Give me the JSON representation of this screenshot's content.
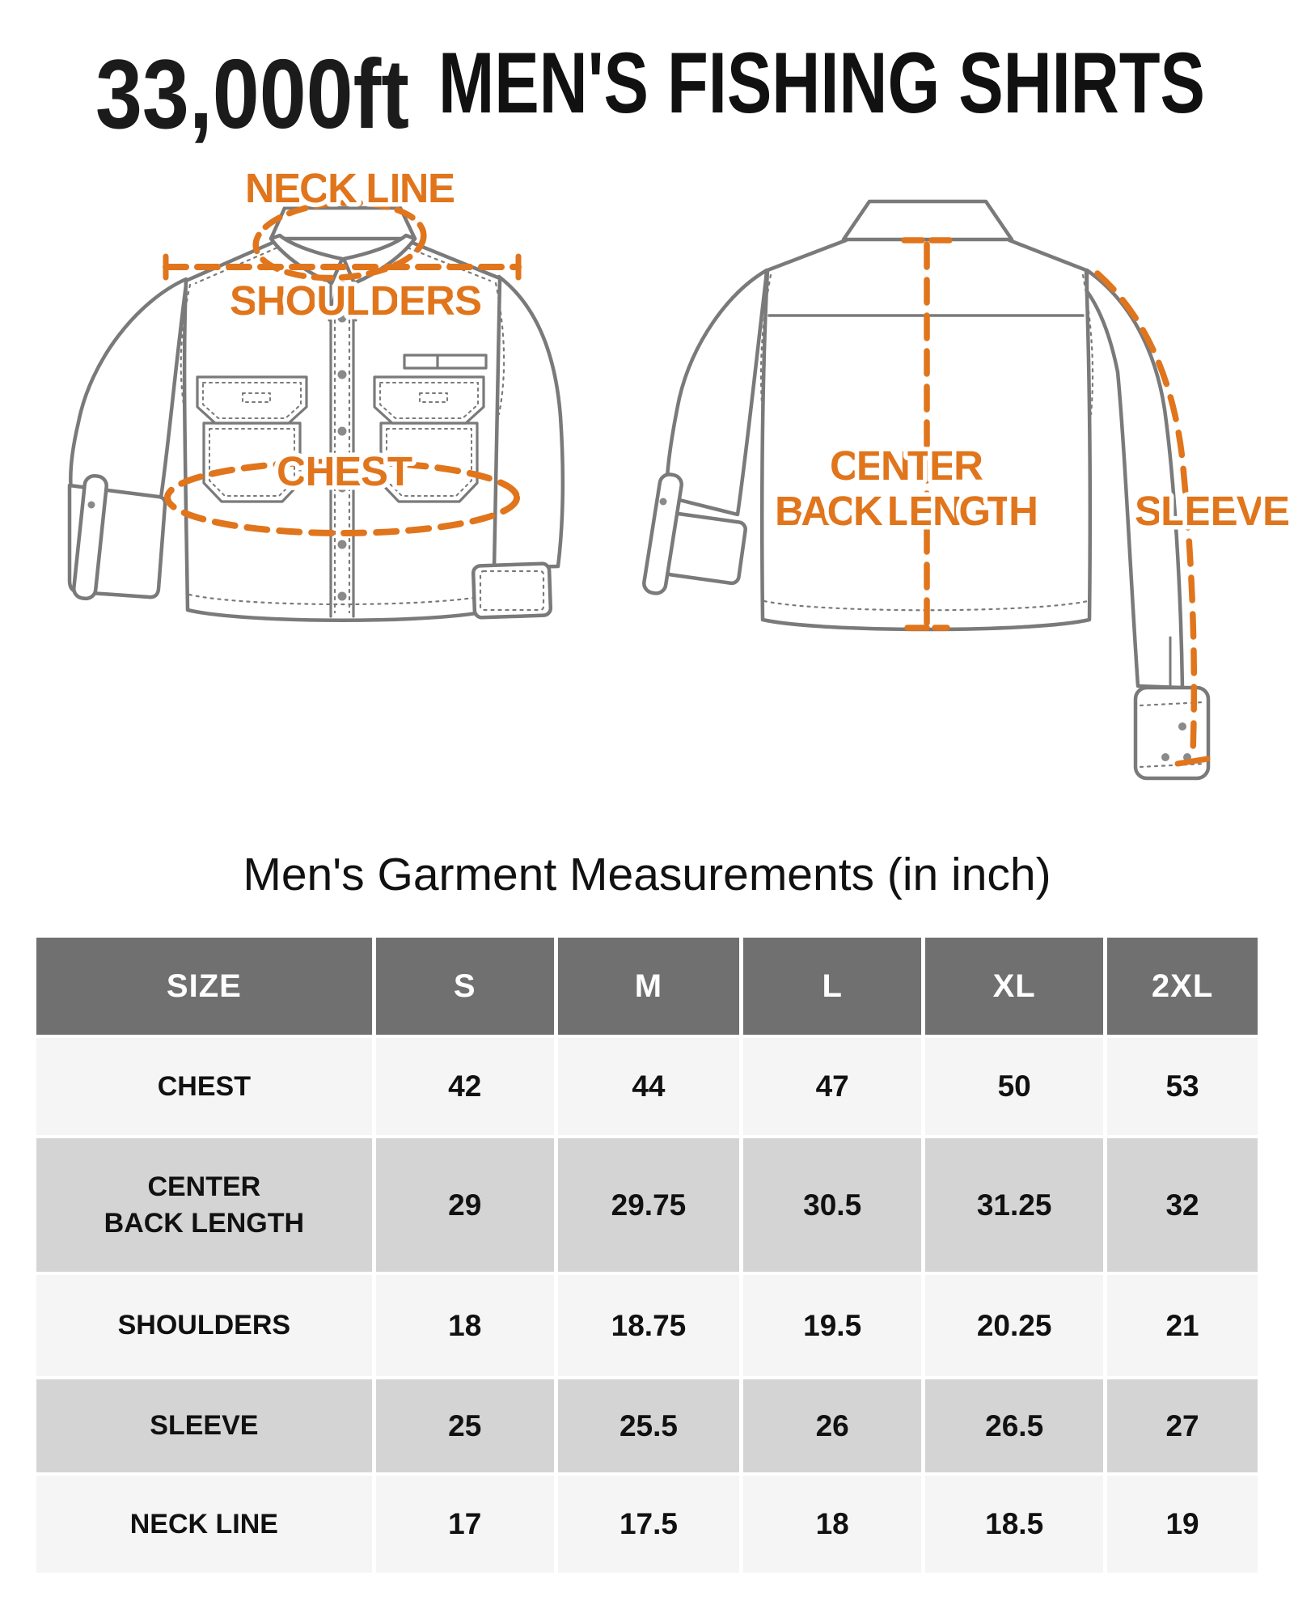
{
  "header": {
    "logo": "33,000ft",
    "title": "MEN'S FISHING SHIRTS"
  },
  "diagram": {
    "accent_color": "#E0751C",
    "line_color": "#7a7a7a",
    "labels": {
      "neck_line": "NECK LINE",
      "shoulders": "SHOULDERS",
      "chest": "CHEST",
      "center_back_line1": "CENTER",
      "center_back_line2": "BACK LENGTH",
      "sleeve": "SLEEVE"
    }
  },
  "measurements": {
    "heading": "Men's Garment Measurements (in inch)",
    "table": {
      "columns": [
        "SIZE",
        "S",
        "M",
        "L",
        "XL",
        "2XL"
      ],
      "rows": [
        {
          "label": "CHEST",
          "values": [
            "42",
            "44",
            "47",
            "50",
            "53"
          ]
        },
        {
          "label": "CENTER\nBACK LENGTH",
          "values": [
            "29",
            "29.75",
            "30.5",
            "31.25",
            "32"
          ]
        },
        {
          "label": "SHOULDERS",
          "values": [
            "18",
            "18.75",
            "19.5",
            "20.25",
            "21"
          ]
        },
        {
          "label": "SLEEVE",
          "values": [
            "25",
            "25.5",
            "26",
            "26.5",
            "27"
          ]
        },
        {
          "label": "NECK LINE",
          "values": [
            "17",
            "17.5",
            "18",
            "18.5",
            "19"
          ]
        }
      ]
    }
  }
}
